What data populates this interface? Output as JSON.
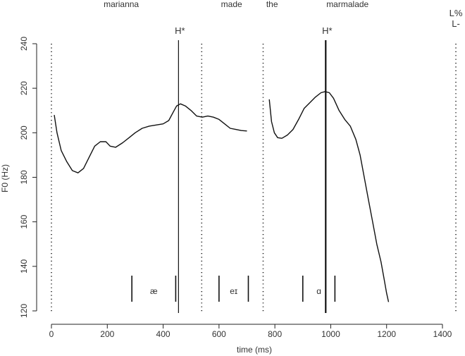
{
  "chart_data": {
    "type": "line",
    "title": "",
    "xlabel": "time (ms)",
    "ylabel": "F0 (Hz)",
    "xlim": [
      -30,
      1480
    ],
    "ylim": [
      120,
      240
    ],
    "x_ticks": [
      0,
      200,
      400,
      600,
      800,
      1000,
      1200,
      1400
    ],
    "y_ticks": [
      120,
      140,
      160,
      180,
      200,
      220,
      240
    ],
    "grid": false,
    "legend": "none",
    "words": [
      {
        "label": "marianna",
        "x": 250
      },
      {
        "label": "made",
        "x": 645
      },
      {
        "label": "the",
        "x": 790
      },
      {
        "label": "marmalade",
        "x": 1060
      }
    ],
    "word_boundaries": [
      0,
      538,
      758,
      1448
    ],
    "tones": [
      {
        "label": "H*",
        "x": 455
      },
      {
        "label": "H*",
        "x": 982
      },
      {
        "label": "L%",
        "x": 1448,
        "row": 1
      },
      {
        "label": "L-",
        "x": 1448,
        "row": 2
      }
    ],
    "accent_lines": [
      455,
      982
    ],
    "segments": [
      {
        "label": "æ",
        "start": 288,
        "end": 445
      },
      {
        "label": "eɪ",
        "start": 600,
        "end": 705
      },
      {
        "label": "ɑ",
        "start": 900,
        "end": 1015
      }
    ],
    "series": [
      {
        "points": [
          [
            10,
            208
          ],
          [
            20,
            200
          ],
          [
            35,
            192
          ],
          [
            55,
            187
          ],
          [
            75,
            183
          ],
          [
            95,
            182
          ],
          [
            115,
            184
          ],
          [
            135,
            189
          ],
          [
            155,
            194
          ],
          [
            175,
            196
          ],
          [
            195,
            196
          ],
          [
            210,
            194
          ],
          [
            230,
            193.5
          ],
          [
            255,
            195.5
          ],
          [
            280,
            198
          ],
          [
            300,
            200
          ],
          [
            325,
            202
          ],
          [
            350,
            203
          ],
          [
            375,
            203.5
          ],
          [
            400,
            204
          ],
          [
            420,
            205.5
          ],
          [
            435,
            209
          ],
          [
            448,
            212
          ],
          [
            462,
            213
          ],
          [
            480,
            212
          ],
          [
            500,
            210
          ],
          [
            520,
            207.5
          ],
          [
            540,
            207
          ],
          [
            560,
            207.5
          ],
          [
            580,
            207
          ],
          [
            600,
            206
          ],
          [
            620,
            204
          ],
          [
            640,
            202
          ],
          [
            660,
            201.5
          ],
          [
            680,
            201
          ],
          [
            700,
            200.8
          ]
        ]
      },
      {
        "points": [
          [
            780,
            215
          ],
          [
            788,
            205
          ],
          [
            798,
            200
          ],
          [
            810,
            197.8
          ],
          [
            825,
            197.5
          ],
          [
            845,
            199
          ],
          [
            865,
            201.5
          ],
          [
            885,
            206
          ],
          [
            905,
            211
          ],
          [
            925,
            213.5
          ],
          [
            945,
            216
          ],
          [
            965,
            218
          ],
          [
            980,
            218.5
          ],
          [
            995,
            218
          ],
          [
            1010,
            215.5
          ],
          [
            1030,
            210
          ],
          [
            1050,
            206
          ],
          [
            1070,
            203
          ],
          [
            1090,
            197
          ],
          [
            1105,
            190
          ],
          [
            1120,
            180
          ],
          [
            1135,
            170
          ],
          [
            1150,
            160
          ],
          [
            1165,
            150
          ],
          [
            1180,
            142
          ],
          [
            1190,
            135
          ],
          [
            1200,
            128
          ],
          [
            1207,
            124
          ]
        ]
      }
    ]
  }
}
